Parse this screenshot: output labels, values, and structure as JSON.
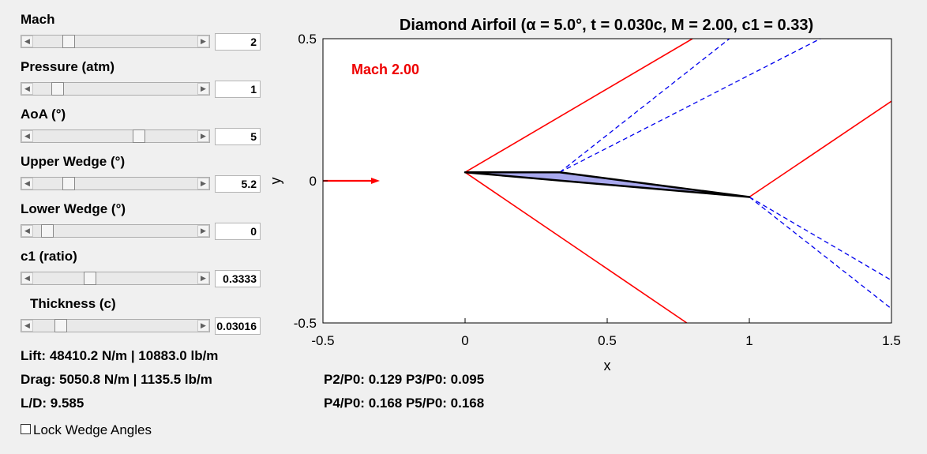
{
  "controls": [
    {
      "label": "Mach",
      "value": "2",
      "fraction": 0.19
    },
    {
      "label": "Pressure (atm)",
      "value": "1",
      "fraction": 0.12
    },
    {
      "label": "AoA (°)",
      "value": "5",
      "fraction": 0.65
    },
    {
      "label": "Upper Wedge (°)",
      "value": "5.2",
      "fraction": 0.19
    },
    {
      "label": "Lower Wedge (°)",
      "value": "0",
      "fraction": 0.05
    },
    {
      "label": "c1 (ratio)",
      "value": "0.3333",
      "fraction": 0.33
    },
    {
      "label": "Thickness (c)",
      "value": "0.03016",
      "fraction": 0.14
    }
  ],
  "results": {
    "lift": "Lift: 48410.2 N/m | 10883.0 lb/m",
    "drag": "Drag: 5050.8 N/m | 1135.5 lb/m",
    "ld": "L/D: 9.585",
    "p23": "P2/P0: 0.129 P3/P0: 0.095",
    "p45": "P4/P0: 0.168 P5/P0: 0.168"
  },
  "lock": {
    "label": "Lock Wedge Angles",
    "checked": false
  },
  "chart_data": {
    "type": "line",
    "title": "Diamond Airfoil (α = 5.0°, t = 0.030c, M = 2.00, c1 = 0.33)",
    "xlabel": "x",
    "ylabel": "y",
    "xlim": [
      -0.5,
      1.5
    ],
    "ylim": [
      -0.5,
      0.5
    ],
    "xticks": [
      "-0.5",
      "0",
      "0.5",
      "1",
      "1.5"
    ],
    "yticks": [
      "0.5",
      "0",
      "-0.5"
    ],
    "grid": false,
    "annotation": "Mach 2.00",
    "colors": {
      "shock": "#ff0000",
      "expansion": "#0000ee",
      "body_fill": "#a8a8ee",
      "body_edge": "#000000",
      "annotation": "#ee0000"
    },
    "flow_arrow": {
      "x": [
        -0.5,
        -0.3
      ],
      "y": [
        0,
        0
      ]
    },
    "airfoil": {
      "x": [
        0,
        0.333,
        1,
        0
      ],
      "y": [
        0.03,
        0.03,
        -0.057,
        0.03
      ],
      "lower_x": [
        0,
        1
      ],
      "lower_y": [
        0.03,
        -0.057
      ]
    },
    "series": [
      {
        "style": "shock",
        "x": [
          0,
          0.8
        ],
        "y": [
          0.03,
          0.5
        ]
      },
      {
        "style": "shock",
        "x": [
          0,
          0.78
        ],
        "y": [
          0.03,
          -0.5
        ]
      },
      {
        "style": "shock",
        "x": [
          1,
          1.5
        ],
        "y": [
          -0.057,
          0.28
        ]
      },
      {
        "style": "expansion",
        "x": [
          0.333,
          0.93
        ],
        "y": [
          0.03,
          0.5
        ]
      },
      {
        "style": "expansion",
        "x": [
          0.333,
          1.25
        ],
        "y": [
          0.03,
          0.5
        ]
      },
      {
        "style": "expansion",
        "x": [
          1,
          1.5
        ],
        "y": [
          -0.057,
          -0.35
        ]
      },
      {
        "style": "expansion",
        "x": [
          1,
          1.5
        ],
        "y": [
          -0.057,
          -0.45
        ]
      }
    ]
  }
}
